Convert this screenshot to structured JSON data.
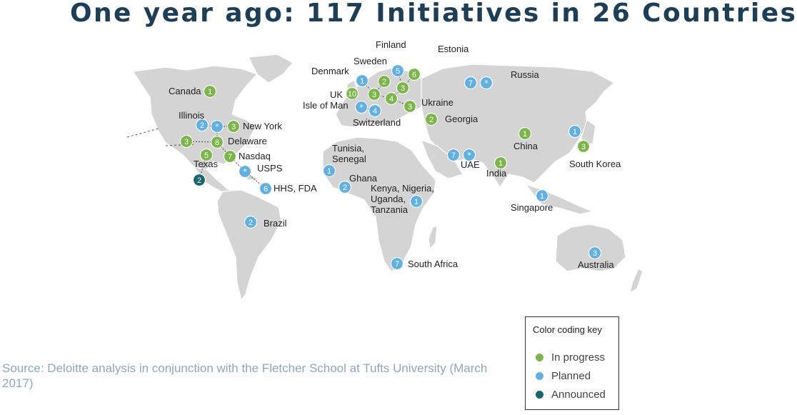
{
  "title": "One year ago: 117 Initiatives in 26 Countries",
  "source": "Source: Deloitte analysis in conjunction with the Fletcher School at Tufts University (March 2017)",
  "key": {
    "title": "Color coding key",
    "items": [
      {
        "label": "In progress",
        "color": "#7ab648"
      },
      {
        "label": "Planned",
        "color": "#5fb0e3"
      },
      {
        "label": "Announced",
        "color": "#17666f"
      }
    ]
  },
  "colors": {
    "in_progress": "#7ab648",
    "planned": "#5fb0e3",
    "announced": "#17666f",
    "land": "#d4d4d4"
  },
  "markers": [
    {
      "name": "canada",
      "label": "Canada",
      "value": "1",
      "status": "in_progress"
    },
    {
      "name": "illinois",
      "label": "Illinois",
      "value": "2",
      "status": "planned"
    },
    {
      "name": "us-star",
      "label": "",
      "value": "*",
      "status": "planned"
    },
    {
      "name": "new-york",
      "label": "New York",
      "value": "3",
      "status": "in_progress"
    },
    {
      "name": "west-us",
      "label": "",
      "value": "3",
      "status": "in_progress"
    },
    {
      "name": "delaware",
      "label": "Delaware",
      "value": "8",
      "status": "in_progress"
    },
    {
      "name": "texas",
      "label": "Texas",
      "value": "5",
      "status": "in_progress"
    },
    {
      "name": "nasdaq",
      "label": "Nasdaq",
      "value": "7",
      "status": "in_progress"
    },
    {
      "name": "usps",
      "label": "USPS",
      "value": "*",
      "status": "planned"
    },
    {
      "name": "mexico",
      "label": "",
      "value": "2",
      "status": "announced"
    },
    {
      "name": "hhs-fda",
      "label": "HHS, FDA",
      "value": "6",
      "status": "planned"
    },
    {
      "name": "brazil",
      "label": "Brazil",
      "value": "2",
      "status": "planned"
    },
    {
      "name": "finland",
      "label": "Finland",
      "value": "5",
      "status": "planned"
    },
    {
      "name": "estonia",
      "label": "Estonia",
      "value": "6",
      "status": "in_progress"
    },
    {
      "name": "sweden",
      "label": "Sweden",
      "value": "2",
      "status": "in_progress"
    },
    {
      "name": "denmark",
      "label": "Denmark",
      "value": "1",
      "status": "planned"
    },
    {
      "name": "uk",
      "label": "UK",
      "value": "10",
      "status": "in_progress"
    },
    {
      "name": "europe-a",
      "label": "",
      "value": "3",
      "status": "in_progress"
    },
    {
      "name": "europe-b",
      "label": "",
      "value": "3",
      "status": "in_progress"
    },
    {
      "name": "europe-c",
      "label": "",
      "value": "4",
      "status": "in_progress"
    },
    {
      "name": "isle-of-man",
      "label": "Isle of Man",
      "value": "*",
      "status": "planned"
    },
    {
      "name": "switzerland",
      "label": "Switzerland",
      "value": "4",
      "status": "planned"
    },
    {
      "name": "ukraine",
      "label": "Ukraine",
      "value": "3",
      "status": "in_progress"
    },
    {
      "name": "georgia",
      "label": "Georgia",
      "value": "2",
      "status": "in_progress"
    },
    {
      "name": "russia",
      "label": "Russia",
      "value": "7",
      "status": "planned"
    },
    {
      "name": "russia-star",
      "label": "",
      "value": "*",
      "status": "planned"
    },
    {
      "name": "tunisia-senegal",
      "label": "Tunisia, Senegal",
      "value": "1",
      "status": "planned"
    },
    {
      "name": "ghana",
      "label": "Ghana",
      "value": "2",
      "status": "planned"
    },
    {
      "name": "kenya",
      "label": "Kenya, Nigeria, Uganda, Tanzania",
      "value": "1",
      "status": "planned"
    },
    {
      "name": "uae",
      "label": "UAE",
      "value": "7",
      "status": "planned"
    },
    {
      "name": "uae-star",
      "label": "",
      "value": "*",
      "status": "planned"
    },
    {
      "name": "india",
      "label": "India",
      "value": "1",
      "status": "in_progress"
    },
    {
      "name": "china",
      "label": "China",
      "value": "1",
      "status": "in_progress"
    },
    {
      "name": "japan",
      "label": "",
      "value": "1",
      "status": "planned"
    },
    {
      "name": "south-korea",
      "label": "South Korea",
      "value": "3",
      "status": "in_progress"
    },
    {
      "name": "singapore",
      "label": "Singapore",
      "value": "1",
      "status": "planned"
    },
    {
      "name": "south-africa",
      "label": "South Africa",
      "value": "7",
      "status": "planned"
    },
    {
      "name": "australia",
      "label": "Australia",
      "value": "3",
      "status": "planned"
    }
  ]
}
